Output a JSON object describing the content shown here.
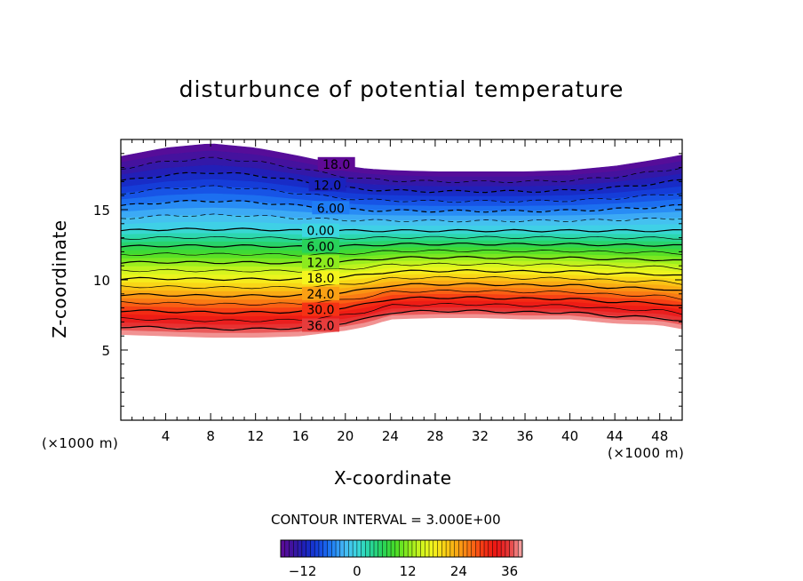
{
  "chart_data": {
    "type": "contour",
    "title": "disturbunce of potential temperature",
    "xlabel": "X-coordinate",
    "ylabel": "Z-coordinate",
    "x_unit_label_left": "(×1000 m)",
    "x_unit_label_right": "(×1000 m)",
    "xlim": [
      0,
      50
    ],
    "ylim": [
      0,
      20
    ],
    "x_ticks": [
      4,
      8,
      12,
      16,
      20,
      24,
      28,
      32,
      36,
      40,
      44,
      48
    ],
    "y_ticks": [
      5,
      10,
      15
    ],
    "contour_interval_text": "CONTOUR INTERVAL = 3.000E+00",
    "contour_interval": 3.0,
    "contour_labels": [
      "18.0",
      "12.0",
      "6.00",
      "0.00",
      "6.00",
      "12.0",
      "18.0",
      "24.0",
      "30.0",
      "36.0"
    ],
    "contour_label_values": [
      -18,
      -12,
      -6,
      0,
      6,
      12,
      18,
      24,
      30,
      36
    ],
    "colorbar": {
      "min": -18,
      "max": 39,
      "tick_values": [
        -12,
        0,
        12,
        24,
        36
      ],
      "tick_labels": [
        "-12",
        "0",
        "12",
        "24",
        "36"
      ]
    },
    "field": {
      "x": [
        0,
        4,
        8,
        12,
        16,
        20,
        22,
        24,
        28,
        32,
        36,
        40,
        44,
        48,
        50
      ],
      "top_z": [
        18.8,
        19.4,
        19.7,
        19.4,
        18.8,
        18.1,
        17.9,
        17.8,
        17.7,
        17.7,
        17.7,
        17.8,
        18.1,
        18.6,
        18.9
      ],
      "bottom_z": [
        6.1,
        6.0,
        5.9,
        5.9,
        6.0,
        6.4,
        6.7,
        7.2,
        7.3,
        7.3,
        7.2,
        7.2,
        6.9,
        6.8,
        6.5
      ],
      "z_theta0": [
        13.5,
        13.6,
        13.6,
        13.6,
        13.5,
        13.5,
        13.5,
        13.5,
        13.5,
        13.5,
        13.5,
        13.5,
        13.5,
        13.5,
        13.5
      ]
    }
  }
}
